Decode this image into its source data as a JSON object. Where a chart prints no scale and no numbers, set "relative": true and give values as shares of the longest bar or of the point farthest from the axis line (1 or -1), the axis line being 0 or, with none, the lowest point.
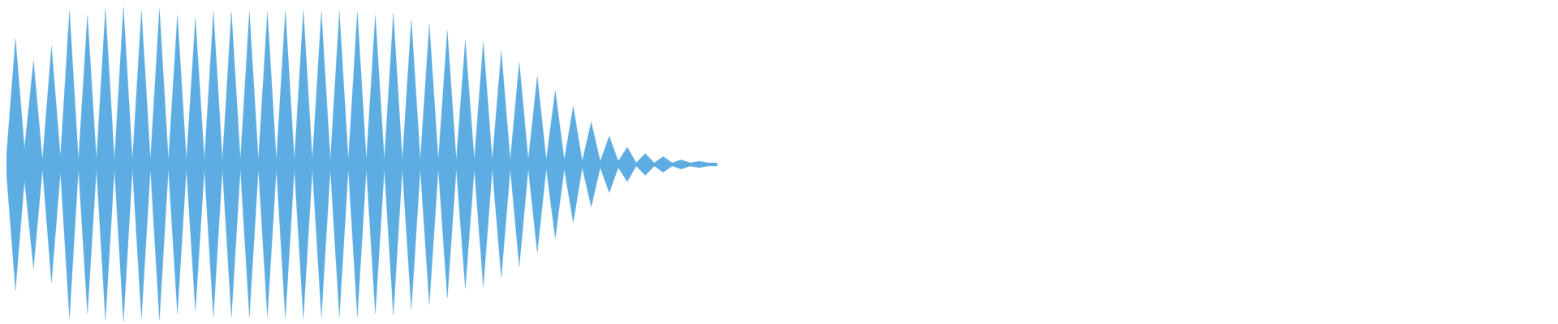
{
  "chart_data": {
    "type": "area",
    "relative": true,
    "categories": [
      null,
      null,
      null,
      null,
      null,
      null,
      null,
      null,
      null,
      null,
      null,
      null,
      null,
      null,
      null,
      null,
      null,
      null,
      null,
      null,
      null,
      null,
      null,
      null,
      null,
      null,
      null,
      null,
      null,
      null,
      null,
      null,
      null,
      null,
      null,
      null,
      null,
      null,
      null,
      null,
      null,
      null,
      null,
      null,
      null,
      null,
      null,
      null,
      null,
      null,
      null,
      null,
      null,
      null,
      null,
      null,
      null,
      null,
      null,
      null,
      null,
      null,
      null,
      null,
      null,
      null,
      null,
      null,
      null,
      null,
      null,
      null,
      null,
      null,
      null,
      null,
      null,
      null,
      null,
      null
    ],
    "series": [
      {
        "color": "#5dade2",
        "values": [
          0.06,
          0.8,
          0.1,
          0.66,
          0.03,
          0.75,
          0.05,
          0.98,
          0.03,
          0.95,
          0.03,
          0.99,
          0.03,
          1,
          0.03,
          0.98,
          0.03,
          0.99,
          0.03,
          0.95,
          0.03,
          0.93,
          0.03,
          0.97,
          0.03,
          0.97,
          0.03,
          0.97,
          0.03,
          0.97,
          0.03,
          0.98,
          0.03,
          0.98,
          0.03,
          0.97,
          0.03,
          0.97,
          0.03,
          0.97,
          0.03,
          0.95,
          0.03,
          0.96,
          0.03,
          0.92,
          0.03,
          0.89,
          0.03,
          0.85,
          0.03,
          0.79,
          0.03,
          0.78,
          0.03,
          0.72,
          0.03,
          0.65,
          0.03,
          0.56,
          0.03,
          0.47,
          0.03,
          0.37,
          0.02,
          0.27,
          0.02,
          0.18,
          0.02,
          0.11,
          0.01,
          0.07,
          0.01,
          0.05,
          0.01,
          0.03,
          0.01,
          0.02,
          0.01,
          0.01
        ]
      },
      {
        "color": "#5dade2",
        "values": [
          -0.06,
          -0.8,
          -0.1,
          -0.66,
          -0.03,
          -0.75,
          -0.05,
          -0.98,
          -0.03,
          -0.95,
          -0.03,
          -0.99,
          -0.03,
          -1,
          -0.03,
          -0.98,
          -0.03,
          -0.99,
          -0.03,
          -0.95,
          -0.03,
          -0.93,
          -0.03,
          -0.97,
          -0.03,
          -0.97,
          -0.03,
          -0.97,
          -0.03,
          -0.97,
          -0.03,
          -0.98,
          -0.03,
          -0.98,
          -0.03,
          -0.97,
          -0.03,
          -0.97,
          -0.03,
          -0.97,
          -0.03,
          -0.95,
          -0.03,
          -0.96,
          -0.03,
          -0.92,
          -0.03,
          -0.89,
          -0.03,
          -0.85,
          -0.03,
          -0.79,
          -0.03,
          -0.78,
          -0.03,
          -0.72,
          -0.03,
          -0.65,
          -0.03,
          -0.56,
          -0.03,
          -0.47,
          -0.03,
          -0.37,
          -0.02,
          -0.27,
          -0.02,
          -0.18,
          -0.02,
          -0.11,
          -0.01,
          -0.07,
          -0.01,
          -0.05,
          -0.01,
          -0.03,
          -0.01,
          -0.02,
          -0.01,
          -0.01
        ]
      }
    ]
  }
}
